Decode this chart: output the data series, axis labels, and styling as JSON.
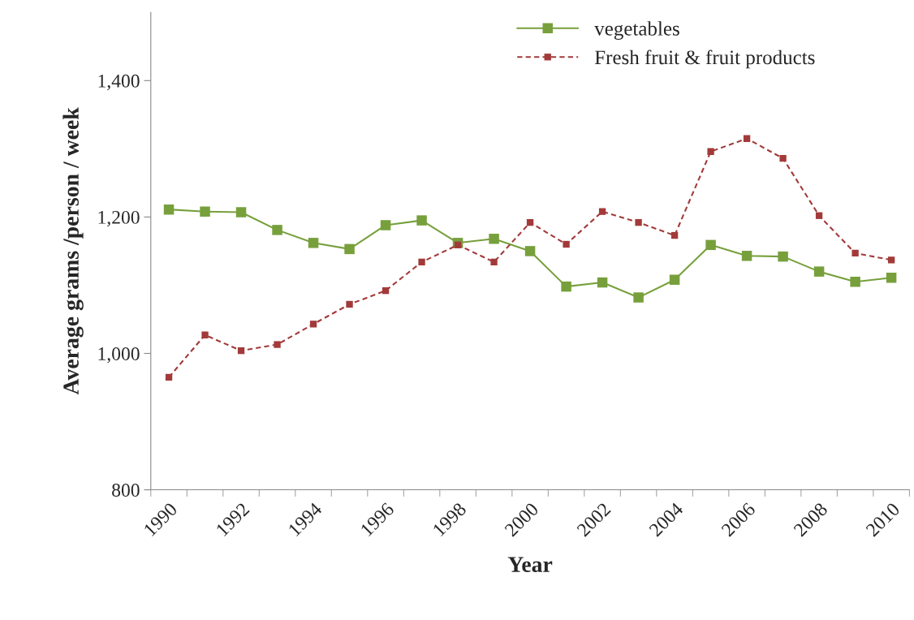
{
  "chart_data": {
    "type": "line",
    "xlabel": "Year",
    "ylabel": "Average grams /person / week",
    "categories": [
      "1990",
      null,
      "1992",
      null,
      "1994",
      null,
      "1996",
      null,
      "1998",
      null,
      "2000",
      null,
      "2002",
      null,
      "2004",
      null,
      "2006",
      null,
      "2008",
      null,
      "2010"
    ],
    "series": [
      {
        "name": "vegetables",
        "color": "#77a03c",
        "line_style": "solid",
        "values": [
          1211,
          1208,
          1207,
          1181,
          1162,
          1153,
          1188,
          1195,
          1162,
          1168,
          1150,
          1098,
          1104,
          1082,
          1108,
          1159,
          1143,
          1142,
          1120,
          1105,
          1111
        ]
      },
      {
        "name": "Fresh fruit & fruit products",
        "color": "#a33a3a",
        "line_style": "dashed",
        "values": [
          965,
          1027,
          1004,
          1013,
          1043,
          1072,
          1092,
          1134,
          1159,
          1134,
          1192,
          1160,
          1208,
          1192,
          1173,
          1296,
          1315,
          1286,
          1202,
          1147,
          1137
        ]
      }
    ],
    "ylim": [
      800,
      1500
    ],
    "yticks": [
      800,
      {
        "value": 1000,
        "label": "1,000"
      },
      {
        "value": 1200,
        "label": "1,200"
      },
      {
        "value": 1400,
        "label": "1,400"
      }
    ],
    "marker": "square",
    "grid": false,
    "legend": "top right"
  }
}
